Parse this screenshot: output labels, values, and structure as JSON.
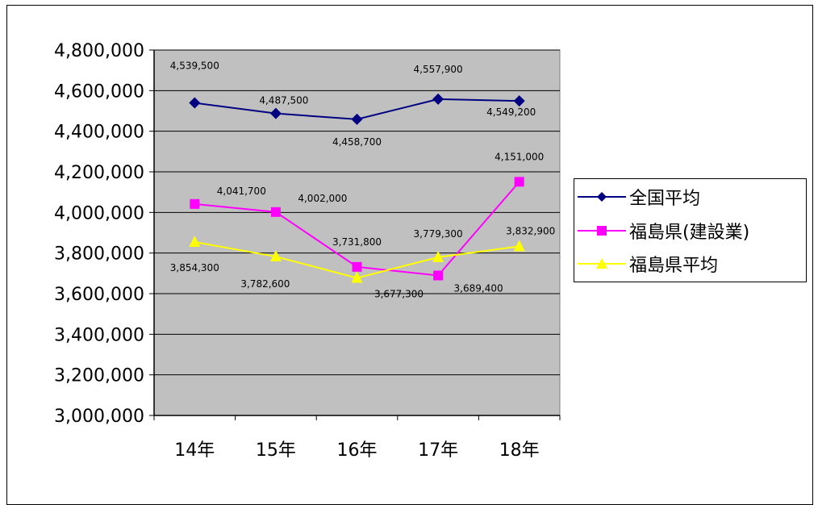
{
  "chart_data": {
    "type": "line",
    "categories": [
      "14年",
      "15年",
      "16年",
      "17年",
      "18年"
    ],
    "ylim": [
      3000000,
      4800000
    ],
    "yticks": [
      3000000,
      3200000,
      3400000,
      3600000,
      3800000,
      4000000,
      4200000,
      4400000,
      4600000,
      4800000
    ],
    "ytick_labels": [
      "3,000,000",
      "3,200,000",
      "3,400,000",
      "3,600,000",
      "3,800,000",
      "4,000,000",
      "4,200,000",
      "4,400,000",
      "4,600,000",
      "4,800,000"
    ],
    "grid": true,
    "legend_position": "right",
    "plot_background": "#c0c0c0",
    "series": [
      {
        "name": "全国平均",
        "color": "#000080",
        "marker": "diamond",
        "values": [
          4539500,
          4487500,
          4458700,
          4557900,
          4549200
        ],
        "labels": [
          "4,539,500",
          "4,487,500",
          "4,458,700",
          "4,557,900",
          "4,549,200"
        ]
      },
      {
        "name": "福島県(建設業)",
        "color": "#ff00ff",
        "marker": "square",
        "values": [
          4041700,
          4002000,
          3731800,
          3689400,
          4151000
        ],
        "labels": [
          "4,041,700",
          "4,002,000",
          "3,731,800",
          "3,689,400",
          "4,151,000"
        ]
      },
      {
        "name": "福島県平均",
        "color": "#ffff00",
        "marker": "triangle",
        "values": [
          3854300,
          3782600,
          3677300,
          3779300,
          3832900
        ],
        "labels": [
          "3,854,300",
          "3,782,600",
          "3,677,300",
          "3,779,300",
          "3,832,900"
        ]
      }
    ]
  }
}
